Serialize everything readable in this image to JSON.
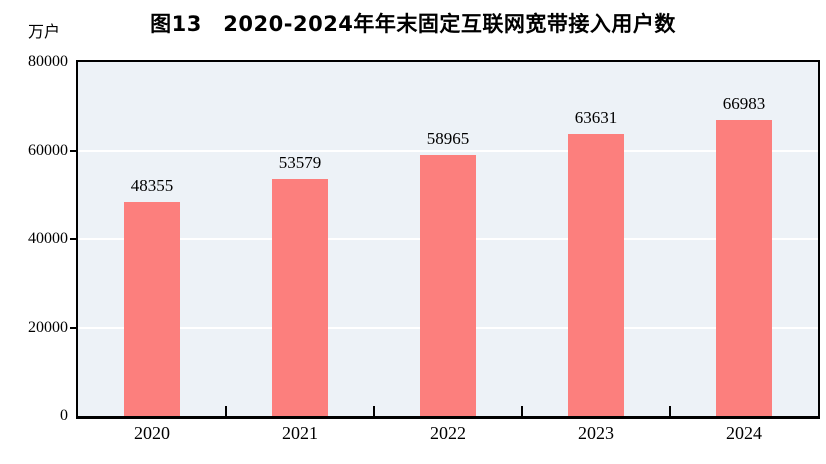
{
  "title": "图13　2020-2024年年末固定互联网宽带接入用户数",
  "unit_label": "万户",
  "colors": {
    "bar": "#fc7f7d",
    "plot_bg": "#edf2f7",
    "grid": "#ffffff",
    "axis": "#000000",
    "text": "#000000"
  },
  "chart_data": {
    "type": "bar",
    "title": "图13　2020-2024年年末固定互联网宽带接入用户数",
    "ylabel": "万户",
    "categories": [
      "2020",
      "2021",
      "2022",
      "2023",
      "2024"
    ],
    "values": [
      48355,
      53579,
      58965,
      63631,
      66983
    ],
    "ylim": [
      0,
      80000
    ],
    "yticks": [
      0,
      20000,
      40000,
      60000,
      80000
    ],
    "gridlines_at": [
      20000,
      40000,
      60000
    ],
    "grid": true,
    "data_labels": true,
    "legend": "none",
    "bar_width_fraction": 0.385
  }
}
